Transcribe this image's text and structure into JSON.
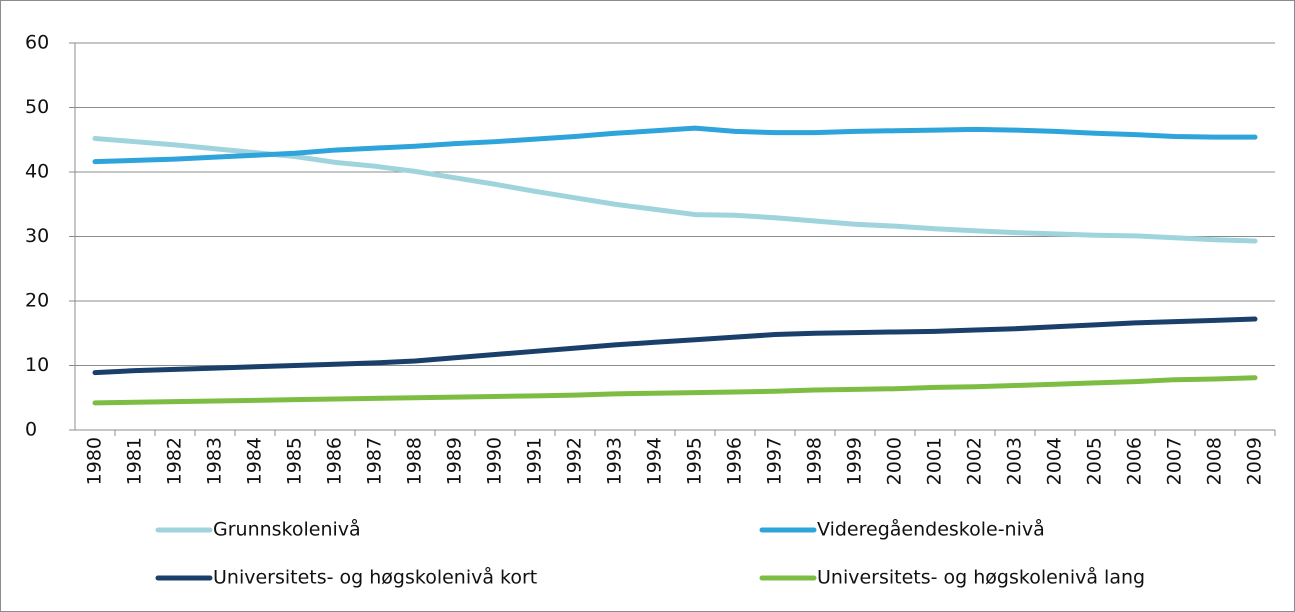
{
  "chart_data": {
    "type": "line",
    "categories": [
      "1980",
      "1981",
      "1982",
      "1983",
      "1984",
      "1985",
      "1986",
      "1987",
      "1988",
      "1989",
      "1990",
      "1991",
      "1992",
      "1993",
      "1994",
      "1995",
      "1996",
      "1997",
      "1998",
      "1999",
      "2000",
      "2001",
      "2002",
      "2003",
      "2004",
      "2005",
      "2006",
      "2007",
      "2008",
      "2009"
    ],
    "series": [
      {
        "name": "Grunnskolenivå",
        "color": "#9fd4dc",
        "values": [
          45.2,
          44.7,
          44.2,
          43.6,
          43.0,
          42.4,
          41.5,
          40.9,
          40.1,
          39.1,
          38.1,
          37.0,
          36.0,
          35.0,
          34.2,
          33.4,
          33.3,
          32.9,
          32.4,
          31.9,
          31.6,
          31.2,
          30.9,
          30.6,
          30.4,
          30.2,
          30.1,
          29.8,
          29.5,
          29.3
        ]
      },
      {
        "name": "Videregåendeskole-nivå",
        "color": "#2ea4db",
        "values": [
          41.6,
          41.8,
          42.0,
          42.3,
          42.6,
          42.9,
          43.4,
          43.7,
          44.0,
          44.4,
          44.7,
          45.1,
          45.5,
          46.0,
          46.4,
          46.8,
          46.3,
          46.1,
          46.1,
          46.3,
          46.4,
          46.5,
          46.6,
          46.5,
          46.3,
          46.0,
          45.8,
          45.5,
          45.4,
          45.4
        ]
      },
      {
        "name": "Universitets- og høgskolenivå kort",
        "color": "#1b3f6b",
        "values": [
          8.9,
          9.2,
          9.4,
          9.6,
          9.8,
          10.0,
          10.2,
          10.4,
          10.7,
          11.2,
          11.7,
          12.2,
          12.7,
          13.2,
          13.6,
          14.0,
          14.4,
          14.8,
          15.0,
          15.1,
          15.2,
          15.3,
          15.5,
          15.7,
          16.0,
          16.3,
          16.6,
          16.8,
          17.0,
          17.2
        ]
      },
      {
        "name": "Universitets- og høgskolenivå lang",
        "color": "#7ebd44",
        "values": [
          4.2,
          4.3,
          4.4,
          4.5,
          4.6,
          4.7,
          4.8,
          4.9,
          5.0,
          5.1,
          5.2,
          5.3,
          5.4,
          5.6,
          5.7,
          5.8,
          5.9,
          6.0,
          6.2,
          6.3,
          6.4,
          6.6,
          6.7,
          6.9,
          7.1,
          7.3,
          7.5,
          7.8,
          7.9,
          8.1
        ]
      }
    ],
    "ylim": [
      0,
      60
    ],
    "yticks": [
      0,
      10,
      20,
      30,
      40,
      50,
      60
    ],
    "grid": true
  }
}
